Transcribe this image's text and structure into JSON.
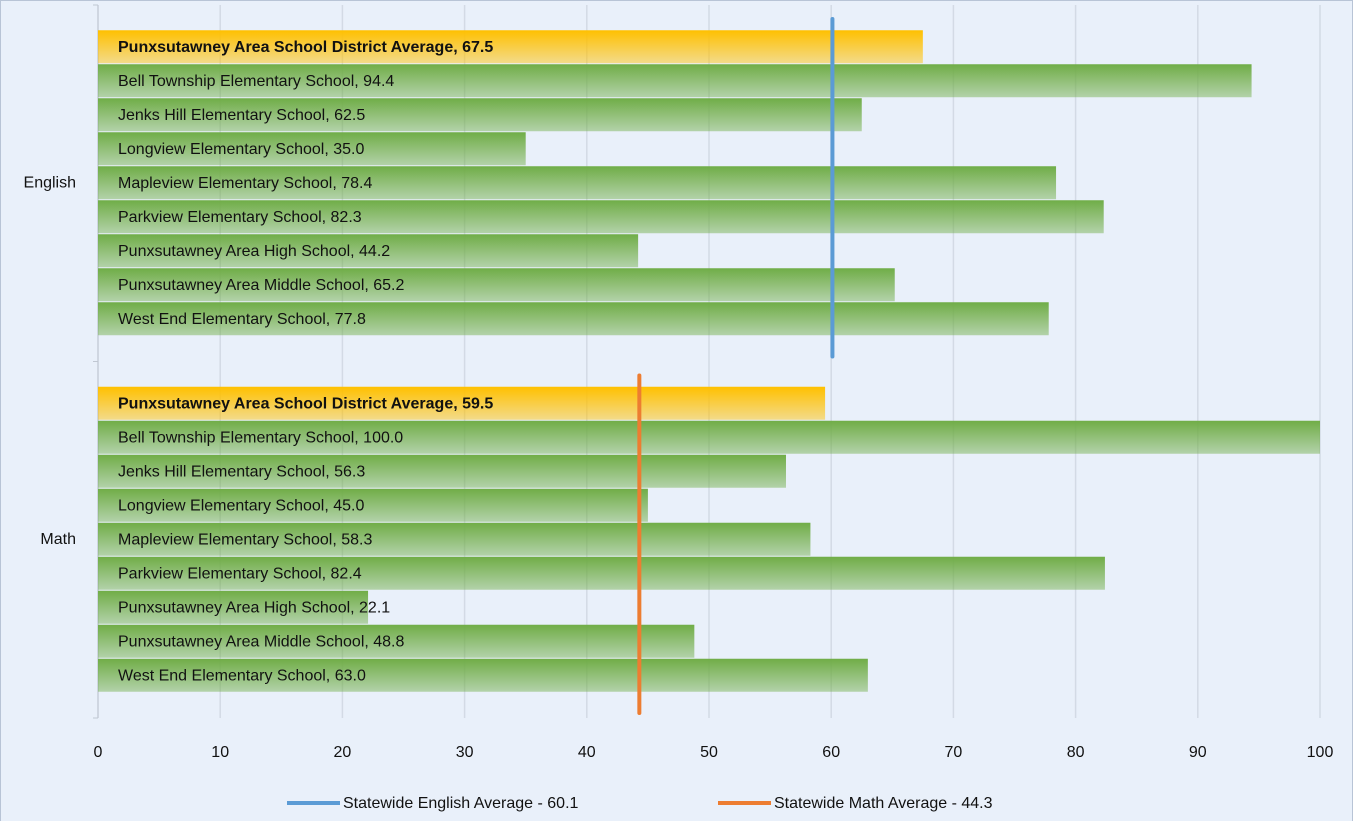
{
  "chart_data": {
    "type": "bar",
    "groups": [
      {
        "name": "English",
        "labels": [
          "Punxsutawney Area School District Average, 67.5",
          "Bell Township Elementary School, 94.4",
          "Jenks Hill Elementary School, 62.5",
          "Longview Elementary School, 35.0",
          "Mapleview Elementary School, 78.4",
          "Parkview Elementary School, 82.3",
          "Punxsutawney Area High School, 44.2",
          "Punxsutawney Area Middle School, 65.2",
          "West End Elementary School, 77.8"
        ],
        "values": [
          67.5,
          94.4,
          62.5,
          35.0,
          78.4,
          82.3,
          44.2,
          65.2,
          77.8
        ]
      },
      {
        "name": "Math",
        "labels": [
          "Punxsutawney Area School District Average, 59.5",
          "Bell Township Elementary School, 100.0",
          "Jenks Hill Elementary School, 56.3",
          "Longview Elementary School, 45.0",
          "Mapleview Elementary School, 58.3",
          "Parkview Elementary School, 82.4",
          "Punxsutawney Area High School, 22.1",
          "Punxsutawney Area Middle School, 48.8",
          "West End Elementary School, 63.0"
        ],
        "values": [
          59.5,
          100.0,
          56.3,
          45.0,
          58.3,
          82.4,
          22.1,
          48.8,
          63.0
        ]
      }
    ],
    "color": "#70ad47",
    "highlight": {
      "index": 0,
      "color": "#ffc000"
    },
    "reference_lines": [
      {
        "name": "Statewide English Average - 60.1",
        "value": 60.1,
        "color": "#5b9bd5",
        "group": 0
      },
      {
        "name": "Statewide Math Average - 44.3",
        "value": 44.3,
        "color": "#ed7d31",
        "group": 1
      }
    ],
    "xlim": [
      0,
      100
    ],
    "xticks": [
      0,
      10,
      20,
      30,
      40,
      50,
      60,
      70,
      80,
      90,
      100
    ],
    "grid": true,
    "legend": "bottom"
  }
}
